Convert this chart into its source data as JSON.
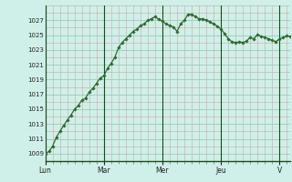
{
  "x_labels": [
    "Lun",
    "Mar",
    "Mer",
    "Jeu",
    "V"
  ],
  "ylim": [
    1008,
    1029
  ],
  "yticks": [
    1009,
    1011,
    1013,
    1015,
    1017,
    1019,
    1021,
    1023,
    1025,
    1027
  ],
  "background_color": "#cff0e8",
  "grid_color_major": "#a0c8b8",
  "grid_color_minor": "#b8ddd4",
  "line_color": "#2d6a2d",
  "marker_color": "#2d6a2d",
  "y_values": [
    1009.0,
    1009.3,
    1010.0,
    1011.2,
    1012.0,
    1012.8,
    1013.5,
    1014.2,
    1015.0,
    1015.5,
    1016.2,
    1016.5,
    1017.3,
    1017.8,
    1018.5,
    1019.2,
    1019.5,
    1020.5,
    1021.2,
    1022.0,
    1023.3,
    1024.0,
    1024.5,
    1025.0,
    1025.5,
    1025.8,
    1026.3,
    1026.5,
    1027.0,
    1027.2,
    1027.5,
    1027.1,
    1026.9,
    1026.5,
    1026.3,
    1026.1,
    1025.5,
    1026.5,
    1027.0,
    1027.8,
    1027.8,
    1027.5,
    1027.2,
    1027.2,
    1027.0,
    1026.8,
    1026.5,
    1026.2,
    1025.8,
    1025.2,
    1024.5,
    1024.1,
    1024.0,
    1024.1,
    1024.0,
    1024.2,
    1024.7,
    1024.5,
    1025.1,
    1024.8,
    1024.7,
    1024.5,
    1024.3,
    1024.1,
    1024.5,
    1024.7,
    1024.9,
    1024.8
  ],
  "n_points": 68,
  "day_boundaries": [
    0,
    16,
    32,
    48,
    64
  ],
  "points_per_day": 16
}
